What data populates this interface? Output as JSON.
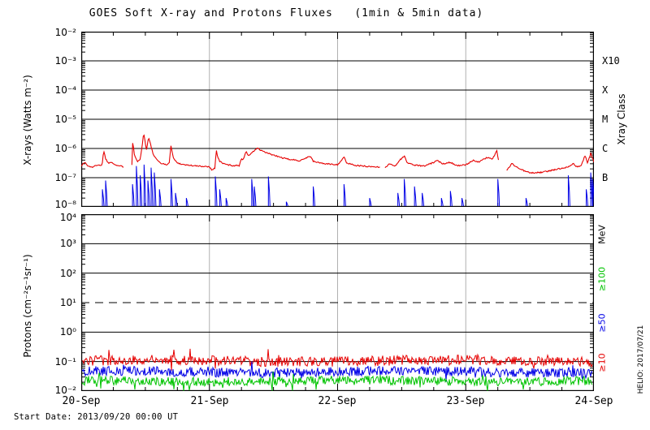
{
  "title": "GOES Soft X-ray and Protons Fluxes   (1min & 5min data)",
  "footer": {
    "start_date_label": "Start Date: 2013/09/20 00:00 UT",
    "credit": "HELIO: 2017/07/21"
  },
  "colors": {
    "xray_long": "#e60000",
    "xray_short": "#0000e6",
    "proton_ge10": "#e60000",
    "proton_ge50": "#0000e6",
    "proton_ge100": "#00c300",
    "day_gridline": "#b0b0b0",
    "frame": "#000000"
  },
  "x_axis": {
    "day_labels": [
      "20-Sep",
      "21-Sep",
      "22-Sep",
      "23-Sep",
      "24-Sep"
    ],
    "days_span": 4,
    "minor_tick_hours": 6
  },
  "xray_panel": {
    "ylabel": "X-rays (Watts m⁻²)",
    "right_axis_label": "Xray Class",
    "tick_labels": [
      "10⁻²",
      "10⁻³",
      "10⁻⁴",
      "10⁻⁵",
      "10⁻⁶",
      "10⁻⁷",
      "10⁻⁸"
    ],
    "log_range_exp": [
      -8,
      -2
    ],
    "class_labels": [
      {
        "text": "X10",
        "exp": -3
      },
      {
        "text": "X",
        "exp": -4
      },
      {
        "text": "M",
        "exp": -5
      },
      {
        "text": "C",
        "exp": -6
      },
      {
        "text": "B",
        "exp": -7
      }
    ]
  },
  "proton_panel": {
    "ylabel": "Protons (cm⁻²s⁻¹sr⁻¹)",
    "right_axis_label": "MeV",
    "tick_labels": [
      "10⁴",
      "10³",
      "10²",
      "10¹",
      "10⁰",
      "10⁻¹",
      "10⁻²"
    ],
    "log_range_exp": [
      -2,
      4
    ],
    "channel_labels": [
      {
        "text": "≥100",
        "color": "#00c300"
      },
      {
        "text": "≥50",
        "color": "#0000e6"
      },
      {
        "text": "≥10",
        "color": "#e60000"
      }
    ]
  },
  "chart_data": [
    {
      "type": "line",
      "title": "GOES Soft X-ray flux",
      "x_unit": "days since 2013/09/20 00:00 UT",
      "x_range": [
        0,
        4
      ],
      "ylim": [
        1e-08,
        0.01
      ],
      "grid": "horizontal decades solid black, vertical day lines gray",
      "class_lines": {
        "B": 1e-07,
        "C": 1e-06,
        "M": 1e-05,
        "X": 0.0001,
        "X10": 0.001
      },
      "noise_seed": 1337,
      "noise_decades": 0.022,
      "series": [
        {
          "name": "xray_long_red",
          "color": "#e60000",
          "segments": [
            [
              [
                0.0,
                2.6e-07
              ],
              [
                0.03,
                3.4e-07
              ],
              [
                0.05,
                2.5e-07
              ],
              [
                0.09,
                2.3e-07
              ],
              [
                0.13,
                2.8e-07
              ],
              [
                0.16,
                2.6e-07
              ],
              [
                0.165,
                3.2e-07
              ],
              [
                0.175,
                9e-07
              ],
              [
                0.19,
                4.5e-07
              ],
              [
                0.21,
                3.2e-07
              ],
              [
                0.24,
                3.4e-07
              ],
              [
                0.27,
                2.7e-07
              ],
              [
                0.3,
                2.5e-07
              ],
              [
                0.33,
                2.4e-07
              ]
            ],
            [
              [
                0.395,
                2.8e-07
              ],
              [
                0.402,
                1.9e-06
              ],
              [
                0.415,
                6e-07
              ],
              [
                0.44,
                3.6e-07
              ],
              [
                0.46,
                4.2e-07
              ],
              [
                0.475,
                1.2e-06
              ],
              [
                0.487,
                3.6e-06
              ],
              [
                0.5,
                1.5e-06
              ],
              [
                0.51,
                9e-07
              ],
              [
                0.525,
                2.4e-06
              ],
              [
                0.545,
                1.2e-06
              ],
              [
                0.56,
                6.5e-07
              ],
              [
                0.59,
                4e-07
              ],
              [
                0.63,
                3e-07
              ],
              [
                0.67,
                2.8e-07
              ],
              [
                0.69,
                3.2e-07
              ],
              [
                0.697,
                1.5e-06
              ],
              [
                0.71,
                7e-07
              ],
              [
                0.72,
                4.5e-07
              ],
              [
                0.75,
                3.2e-07
              ],
              [
                0.8,
                2.8e-07
              ],
              [
                0.9,
                2.5e-07
              ],
              [
                1.0,
                2.4e-07
              ],
              [
                1.02,
                1.8e-07
              ],
              [
                1.045,
                2.2e-07
              ],
              [
                1.052,
                1.05e-06
              ],
              [
                1.062,
                5.5e-07
              ],
              [
                1.08,
                3.6e-07
              ],
              [
                1.12,
                2.9e-07
              ],
              [
                1.18,
                2.6e-07
              ],
              [
                1.235,
                2.6e-07
              ],
              [
                1.248,
                4.6e-07
              ],
              [
                1.262,
                4e-07
              ],
              [
                1.287,
                8.5e-07
              ],
              [
                1.3,
                5.5e-07
              ],
              [
                1.33,
                7e-07
              ],
              [
                1.375,
                1.05e-06
              ],
              [
                1.4,
                8.5e-07
              ],
              [
                1.45,
                7e-07
              ],
              [
                1.52,
                5.5e-07
              ],
              [
                1.6,
                4.4e-07
              ],
              [
                1.7,
                3.8e-07
              ],
              [
                1.788,
                5.5e-07
              ],
              [
                1.81,
                3.6e-07
              ],
              [
                1.9,
                3e-07
              ],
              [
                2.0,
                2.8e-07
              ],
              [
                2.052,
                5e-07
              ],
              [
                2.07,
                3.2e-07
              ],
              [
                2.15,
                2.6e-07
              ],
              [
                2.25,
                2.4e-07
              ],
              [
                2.33,
                2.3e-07
              ]
            ],
            [
              [
                2.37,
                2.3e-07
              ],
              [
                2.41,
                3e-07
              ],
              [
                2.45,
                2.5e-07
              ],
              [
                2.49,
                4.2e-07
              ],
              [
                2.52,
                5.5e-07
              ],
              [
                2.545,
                3.2e-07
              ],
              [
                2.6,
                2.7e-07
              ],
              [
                2.68,
                2.5e-07
              ],
              [
                2.78,
                3.8e-07
              ],
              [
                2.82,
                3e-07
              ],
              [
                2.88,
                3.4e-07
              ],
              [
                2.93,
                2.6e-07
              ],
              [
                3.0,
                2.7e-07
              ],
              [
                3.06,
                4e-07
              ],
              [
                3.1,
                3.4e-07
              ],
              [
                3.17,
                5e-07
              ],
              [
                3.21,
                4.4e-07
              ],
              [
                3.242,
                8.5e-07
              ],
              [
                3.255,
                4e-07
              ]
            ],
            [
              [
                3.32,
                1.8e-07
              ],
              [
                3.36,
                3e-07
              ],
              [
                3.42,
                2e-07
              ],
              [
                3.5,
                1.45e-07
              ],
              [
                3.58,
                1.5e-07
              ],
              [
                3.65,
                1.7e-07
              ],
              [
                3.7,
                1.9e-07
              ],
              [
                3.75,
                2.1e-07
              ],
              [
                3.8,
                2.4e-07
              ],
              [
                3.84,
                3e-07
              ],
              [
                3.87,
                2.3e-07
              ],
              [
                3.9,
                2.6e-07
              ],
              [
                3.932,
                6e-07
              ],
              [
                3.95,
                3e-07
              ],
              [
                3.975,
                7e-07
              ],
              [
                3.99,
                4.5e-07
              ],
              [
                4.0,
                3.5e-07
              ]
            ]
          ]
        },
        {
          "name": "xray_short_blue",
          "color": "#0000e6",
          "baseline": 1e-08,
          "spikes": [
            [
              0.165,
              4e-08
            ],
            [
              0.19,
              8e-08
            ],
            [
              0.4,
              6e-08
            ],
            [
              0.43,
              2.5e-07
            ],
            [
              0.46,
              1.2e-07
            ],
            [
              0.49,
              2.8e-07
            ],
            [
              0.52,
              8e-08
            ],
            [
              0.545,
              2.2e-07
            ],
            [
              0.57,
              1.5e-07
            ],
            [
              0.61,
              4e-08
            ],
            [
              0.7,
              9e-08
            ],
            [
              0.735,
              3e-08
            ],
            [
              0.82,
              2e-08
            ],
            [
              1.046,
              1.1e-07
            ],
            [
              1.08,
              4e-08
            ],
            [
              1.13,
              2e-08
            ],
            [
              1.33,
              9e-08
            ],
            [
              1.35,
              5e-08
            ],
            [
              1.46,
              1.1e-07
            ],
            [
              1.6,
              1.5e-08
            ],
            [
              1.81,
              5e-08
            ],
            [
              2.05,
              6e-08
            ],
            [
              2.25,
              2e-08
            ],
            [
              2.47,
              3e-08
            ],
            [
              2.52,
              9e-08
            ],
            [
              2.6,
              5e-08
            ],
            [
              2.66,
              3e-08
            ],
            [
              2.81,
              2e-08
            ],
            [
              2.88,
              3.5e-08
            ],
            [
              2.97,
              2e-08
            ],
            [
              3.25,
              9e-08
            ],
            [
              3.47,
              2e-08
            ],
            [
              3.8,
              1.2e-07
            ],
            [
              3.94,
              4e-08
            ],
            [
              3.975,
              1.5e-07
            ],
            [
              3.99,
              9e-08
            ]
          ]
        }
      ]
    },
    {
      "type": "line",
      "title": "GOES Proton flux",
      "x_unit": "days since 2013/09/20 00:00 UT",
      "x_range": [
        0,
        4
      ],
      "ylim": [
        0.01,
        10000.0
      ],
      "event_threshold": {
        "value": 10,
        "style": "dashed"
      },
      "noise_seed": 4242,
      "series": [
        {
          "name": "≥10 MeV",
          "color": "#e60000",
          "base_flux": 0.105,
          "noise_decades": 0.17,
          "spike_prob": 0.02,
          "spike_decades": 0.32,
          "dip_prob": 0.01,
          "min_flux": 0.0103
        },
        {
          "name": "≥50 MeV",
          "color": "#0000e6",
          "base_flux": 0.045,
          "noise_decades": 0.16,
          "spike_prob": 0.012,
          "spike_decades": 0.25,
          "dip_prob": 0.015,
          "min_flux": 0.0103
        },
        {
          "name": "≥100 MeV",
          "color": "#00c300",
          "base_flux": 0.022,
          "noise_decades": 0.15,
          "spike_prob": 0.01,
          "spike_decades": 0.22,
          "dip_prob": 0.03,
          "min_flux": 0.0102
        }
      ]
    }
  ]
}
